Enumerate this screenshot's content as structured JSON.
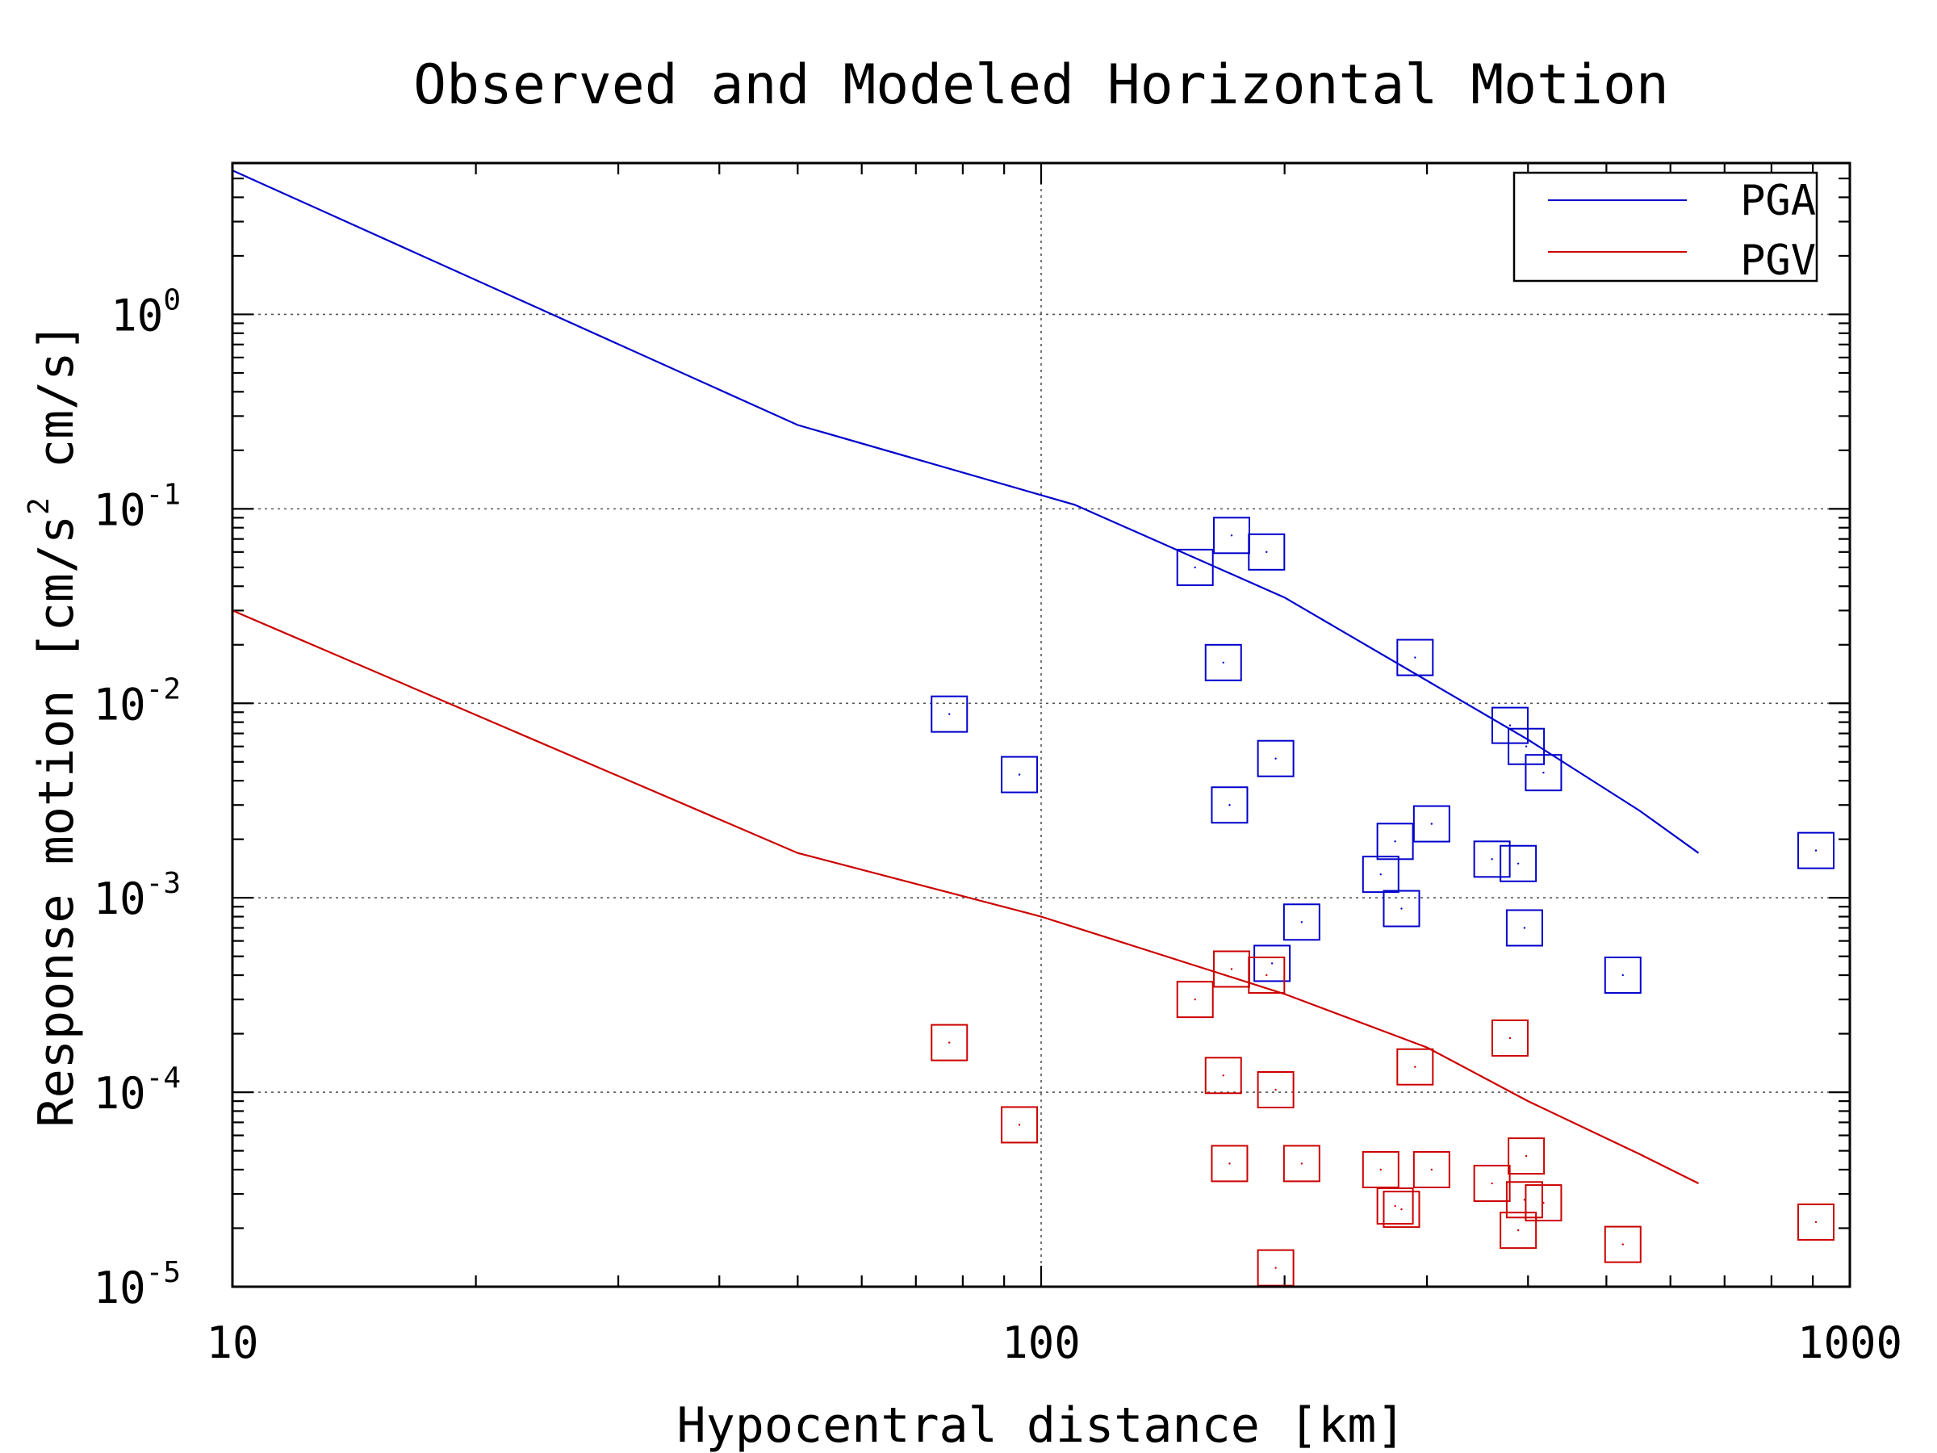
{
  "chart_data": {
    "type": "scatter",
    "title": "Observed and Modeled Horizontal Motion",
    "xlabel": "Hypocentral distance [km]",
    "ylabel": {
      "prefix": "Response motion [cm/s",
      "sup": "2",
      "suffix": "  cm/s]"
    },
    "xscale": "log",
    "yscale": "log",
    "xlim": [
      10,
      1000
    ],
    "ylim": [
      1e-05,
      6.0
    ],
    "grid": "major dotted",
    "legend_position": "top-right",
    "x_ticks": [
      {
        "value": 10,
        "label": "10"
      },
      {
        "value": 100,
        "label": "100"
      },
      {
        "value": 1000,
        "label": "1000"
      }
    ],
    "y_ticks": [
      {
        "value": 1,
        "base": "10",
        "exp": "0"
      },
      {
        "value": 0.1,
        "base": "10",
        "exp": "-1"
      },
      {
        "value": 0.01,
        "base": "10",
        "exp": "-2"
      },
      {
        "value": 0.001,
        "base": "10",
        "exp": "-3"
      },
      {
        "value": 0.0001,
        "base": "10",
        "exp": "-4"
      },
      {
        "value": 1e-05,
        "base": "10",
        "exp": "-5"
      }
    ],
    "lines": [
      {
        "name": "PGA",
        "color": "#0000cc",
        "points": [
          [
            10,
            5.5
          ],
          [
            50,
            0.27
          ],
          [
            110,
            0.105
          ],
          [
            200,
            0.035
          ],
          [
            400,
            0.0065
          ],
          [
            550,
            0.0028
          ],
          [
            650,
            0.0017
          ]
        ]
      },
      {
        "name": "PGV",
        "color": "#cc0000",
        "points": [
          [
            10,
            0.03
          ],
          [
            50,
            0.0017
          ],
          [
            100,
            0.0008
          ],
          [
            200,
            0.00032
          ],
          [
            300,
            0.00017
          ],
          [
            400,
            9e-05
          ],
          [
            550,
            4.8e-05
          ],
          [
            650,
            3.4e-05
          ]
        ]
      }
    ],
    "markers": [
      {
        "series": "PGA",
        "color": "#0000cc",
        "points": [
          [
            77,
            0.0088
          ],
          [
            94,
            0.0043
          ],
          [
            155,
            0.05
          ],
          [
            172,
            0.073
          ],
          [
            190,
            0.06
          ],
          [
            168,
            0.0162
          ],
          [
            171,
            0.003
          ],
          [
            195,
            0.0052
          ],
          [
            290,
            0.0172
          ],
          [
            380,
            0.0077
          ],
          [
            398,
            0.006
          ],
          [
            418,
            0.0044
          ],
          [
            274,
            0.00195
          ],
          [
            304,
            0.0024
          ],
          [
            263,
            0.00132
          ],
          [
            361,
            0.00158
          ],
          [
            389,
            0.0015
          ],
          [
            279,
            0.00088
          ],
          [
            210,
            0.00075
          ],
          [
            396,
            0.0007
          ],
          [
            193,
            0.00046
          ],
          [
            524,
            0.0004
          ],
          [
            908,
            0.00175
          ]
        ]
      },
      {
        "series": "PGV",
        "color": "#cc0000",
        "points": [
          [
            77,
            0.00018
          ],
          [
            94,
            6.8e-05
          ],
          [
            155,
            0.0003
          ],
          [
            172,
            0.00043
          ],
          [
            190,
            0.0004
          ],
          [
            168,
            0.000122
          ],
          [
            195,
            0.000103
          ],
          [
            290,
            0.000135
          ],
          [
            380,
            0.00019
          ],
          [
            171,
            4.3e-05
          ],
          [
            210,
            4.3e-05
          ],
          [
            263,
            4e-05
          ],
          [
            304,
            4e-05
          ],
          [
            361,
            3.4e-05
          ],
          [
            398,
            4.7e-05
          ],
          [
            274,
            2.6e-05
          ],
          [
            279,
            2.5e-05
          ],
          [
            389,
            1.95e-05
          ],
          [
            396,
            2.8e-05
          ],
          [
            418,
            2.7e-05
          ],
          [
            195,
            1.25e-05
          ],
          [
            524,
            1.65e-05
          ],
          [
            908,
            2.15e-05
          ]
        ]
      }
    ],
    "legend": [
      {
        "label": "PGA",
        "color": "#0000cc"
      },
      {
        "label": "PGV",
        "color": "#cc0000"
      }
    ]
  }
}
